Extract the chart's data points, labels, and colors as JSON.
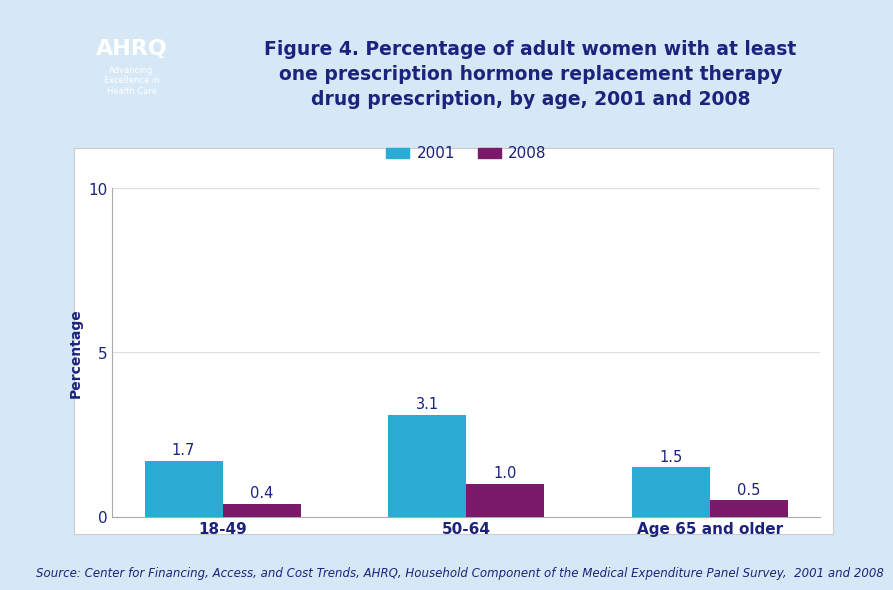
{
  "title_line1": "Figure 4. Percentage of adult women with at least",
  "title_line2": "one prescription hormone replacement therapy",
  "title_line3": "drug prescription, by age, 2001 and 2008",
  "ylabel": "Percentage",
  "categories": [
    "18-49",
    "50-64",
    "Age 65 and older"
  ],
  "values_2001": [
    1.7,
    3.1,
    1.5
  ],
  "values_2008": [
    0.4,
    1.0,
    0.5
  ],
  "labels_2001": [
    "1.7",
    "3.1",
    "1.5"
  ],
  "labels_2008": [
    "0.4",
    "1.0",
    "0.5"
  ],
  "color_2001": "#29ABD4",
  "color_2008": "#7B1A6B",
  "ylim": [
    0,
    10
  ],
  "yticks": [
    0,
    5,
    10
  ],
  "bar_width": 0.32,
  "legend_labels": [
    "2001",
    "2008"
  ],
  "source_text": "Source: Center for Financing, Access, and Cost Trends, AHRQ, Household Component of the Medical Expenditure Panel Survey,  2001 and 2008",
  "title_color": "#1A237E",
  "axis_label_color": "#1A237E",
  "tick_label_color": "#1A237E",
  "background_color": "#FFFFFF",
  "outer_bg_color": "#D6E8F5",
  "plot_bg_color": "#FFFFFF",
  "header_bg_color": "#FFFFFF",
  "logo_bg_color": "#1A9BAA",
  "dark_blue_line": "#1A237E",
  "cyan_line": "#29ABD4",
  "title_fontsize": 13.5,
  "legend_fontsize": 11,
  "ylabel_fontsize": 10,
  "tick_fontsize": 11,
  "bar_label_fontsize": 10.5,
  "source_fontsize": 8.5,
  "category_fontsize": 11
}
